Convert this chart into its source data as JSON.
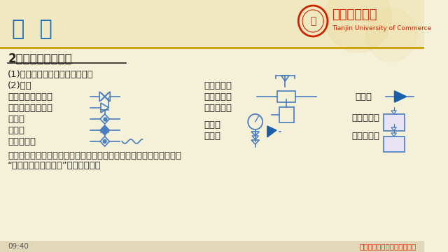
{
  "bg_color": "#f5f0d8",
  "header_bg": "#f0e8c0",
  "title": "绪  论",
  "title_color": "#1a6bb5",
  "title_fontsize": 22,
  "university_name": "天津商业大学",
  "university_sub": "Tianjin University of Commerce",
  "section_title": "2、设备和阀件图例",
  "section_fontsize": 12,
  "line1": "(1)设备图例自造，原则是形象化",
  "line2": "(2)阀件",
  "items_left": [
    "直通阀（截止阀）",
    "直角阀（截止阀）",
    "电磁阀",
    "节流阀",
    "热力膨胀阀"
  ],
  "items_mid": [
    "过压旁通阀",
    "干燥过滤器",
    "直角过滤器",
    "压力表",
    "安全阀"
  ],
  "items_right": [
    "单向阀",
    "",
    "压差继电器",
    "压力继电器"
  ],
  "bottom_text1": "自动阀门：电磁主阀、恒压阀、冷凝压力调节阀、蒸发压力调节阀等按",
  "bottom_text2": "“制冷空调装置自动化”的相关规定。",
  "footer_left": "09:40",
  "footer_right": "热能与动力工程实验教学中心",
  "footer_color": "#cc2200",
  "valve_color": "#4a7dbf",
  "divider_color": "#c8a000",
  "text_color": "#222222",
  "body_fontsize": 9.5
}
